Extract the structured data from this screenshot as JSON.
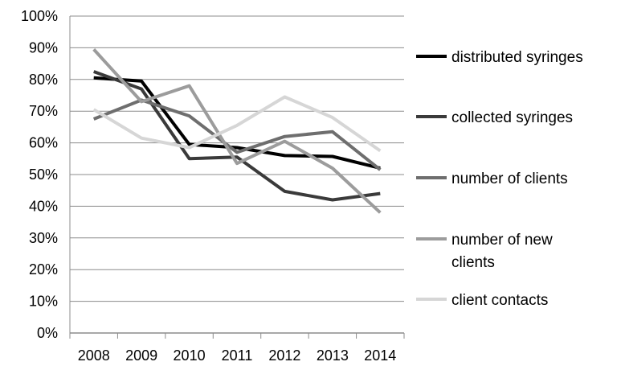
{
  "chart_data": {
    "type": "line",
    "title": "",
    "xlabel": "",
    "ylabel": "",
    "x": [
      "2008",
      "2009",
      "2010",
      "2011",
      "2012",
      "2013",
      "2014"
    ],
    "y_ticks": [
      "0%",
      "10%",
      "20%",
      "30%",
      "40%",
      "50%",
      "60%",
      "70%",
      "80%",
      "90%",
      "100%"
    ],
    "ylim": [
      0,
      100
    ],
    "grid": "horizontal",
    "legend_position": "right",
    "series": [
      {
        "name": "distributed syringes",
        "color": "#000000",
        "values": [
          80.5,
          79.5,
          59.5,
          58.5,
          56,
          55.7,
          52
        ]
      },
      {
        "name": "collected syringes",
        "color": "#3a3a3a",
        "values": [
          82.5,
          77,
          55,
          55.5,
          44.7,
          42,
          44
        ]
      },
      {
        "name": "number of clients",
        "color": "#6e6e6e",
        "values": [
          67.5,
          73.5,
          68.5,
          57,
          62,
          63.5,
          51.5
        ]
      },
      {
        "name": "number of new clients",
        "color": "#9c9c9c",
        "values": [
          89.5,
          73,
          78,
          53.5,
          60.5,
          52,
          38
        ]
      },
      {
        "name": "client contacts",
        "color": "#d6d6d6",
        "values": [
          70.5,
          61.5,
          58.5,
          65.5,
          74.5,
          68,
          57.5
        ]
      }
    ]
  }
}
